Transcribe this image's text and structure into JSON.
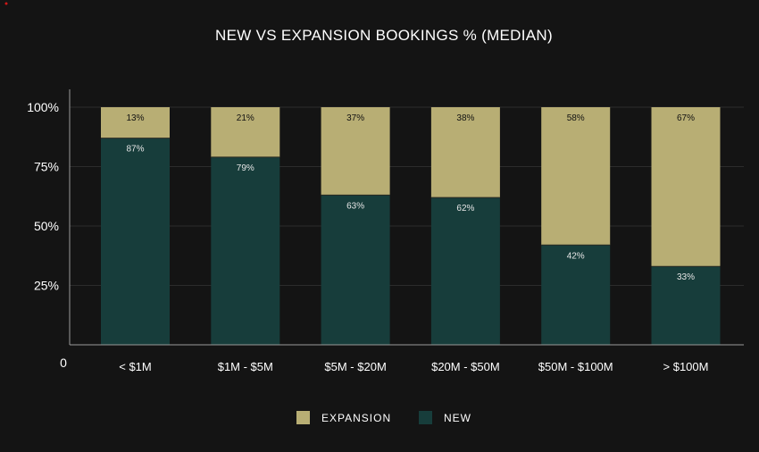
{
  "chart_data": {
    "type": "bar",
    "stacked": true,
    "title": "NEW VS EXPANSION BOOKINGS % (MEDIAN)",
    "xlabel": "",
    "ylabel": "",
    "ylim": [
      0,
      100
    ],
    "yticks": [
      {
        "value": 100,
        "label": "100%"
      },
      {
        "value": 75,
        "label": "75%"
      },
      {
        "value": 50,
        "label": "50%"
      },
      {
        "value": 25,
        "label": "25%"
      }
    ],
    "y_zero_label": "0",
    "categories": [
      "< $1M",
      "$1M - $5M",
      "$5M - $20M",
      "$20M - $50M",
      "$50M - $100M",
      "> $100M"
    ],
    "series": [
      {
        "name": "NEW",
        "color": "#173d3b",
        "label_color": "#e6e6e6",
        "values": [
          87,
          79,
          63,
          62,
          42,
          33
        ],
        "labels": [
          "87%",
          "79%",
          "63%",
          "62%",
          "42%",
          "33%"
        ]
      },
      {
        "name": "EXPANSION",
        "color": "#b8ae74",
        "label_color": "#111111",
        "values": [
          13,
          21,
          37,
          38,
          58,
          67
        ],
        "labels": [
          "13%",
          "21%",
          "37%",
          "38%",
          "58%",
          "67%"
        ]
      }
    ],
    "legend": {
      "position": "bottom",
      "items": [
        {
          "name": "EXPANSION",
          "color": "#b8ae74"
        },
        {
          "name": "NEW",
          "color": "#173d3b"
        }
      ]
    },
    "grid": true
  }
}
